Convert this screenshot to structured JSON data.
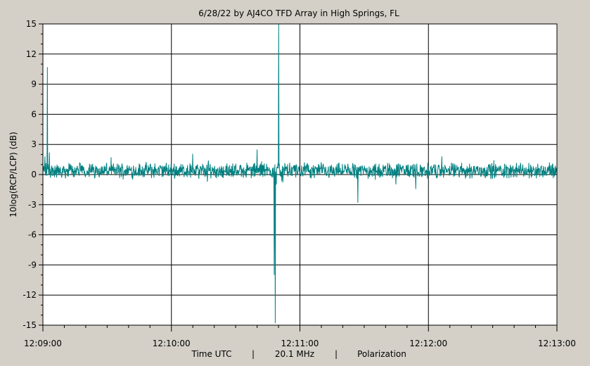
{
  "chart_data": {
    "type": "line",
    "title": "6/28/22  by  AJ4CO TFD Array  in  High Springs, FL",
    "ylabel": "10log(RCP/LCP) (dB)",
    "xlabel_parts": [
      "Time UTC",
      "|",
      "20.1 MHz",
      "|",
      "Polarization"
    ],
    "ylim": [
      -15,
      15
    ],
    "yticks": [
      15,
      12,
      9,
      6,
      3,
      0,
      -3,
      -6,
      -9,
      -12,
      -15
    ],
    "ytick_labels": [
      "15",
      "12",
      "9",
      "6",
      "3",
      "0",
      "-3",
      "-6",
      "-9",
      "-12",
      "-15"
    ],
    "xlim": [
      "12:09:00",
      "12:13:00"
    ],
    "xticks": [
      "12:09:00",
      "12:10:00",
      "12:11:00",
      "12:12:00",
      "12:13:00"
    ],
    "grid": true,
    "series_color": "#008080",
    "baseline_db": 0.4,
    "noise_amplitude_db": 0.6,
    "series": [
      {
        "points": [
          [
            "12:09:00",
            0.5
          ],
          [
            "12:09:01",
            1.8
          ],
          [
            "12:09:02",
            10.7
          ],
          [
            "12:09:03",
            2.2
          ],
          [
            "12:09:04",
            0.7
          ],
          [
            "12:09:30",
            0.9
          ],
          [
            "12:09:55",
            -0.5
          ],
          [
            "12:10:30",
            0.3
          ],
          [
            "12:10:40",
            2.5
          ],
          [
            "12:10:45",
            0.0
          ],
          [
            "12:10:48",
            -10.0
          ],
          [
            "12:10:48.5",
            -14.8
          ],
          [
            "12:10:49",
            -1.0
          ],
          [
            "12:10:50",
            15.0
          ],
          [
            "12:10:51",
            0.4
          ],
          [
            "12:10:52",
            -0.8
          ],
          [
            "12:11:10",
            0.6
          ],
          [
            "12:11:27",
            -2.8
          ],
          [
            "12:11:40",
            0.6
          ],
          [
            "12:12:30",
            0.6
          ],
          [
            "12:13:00",
            0.6
          ]
        ]
      }
    ]
  }
}
